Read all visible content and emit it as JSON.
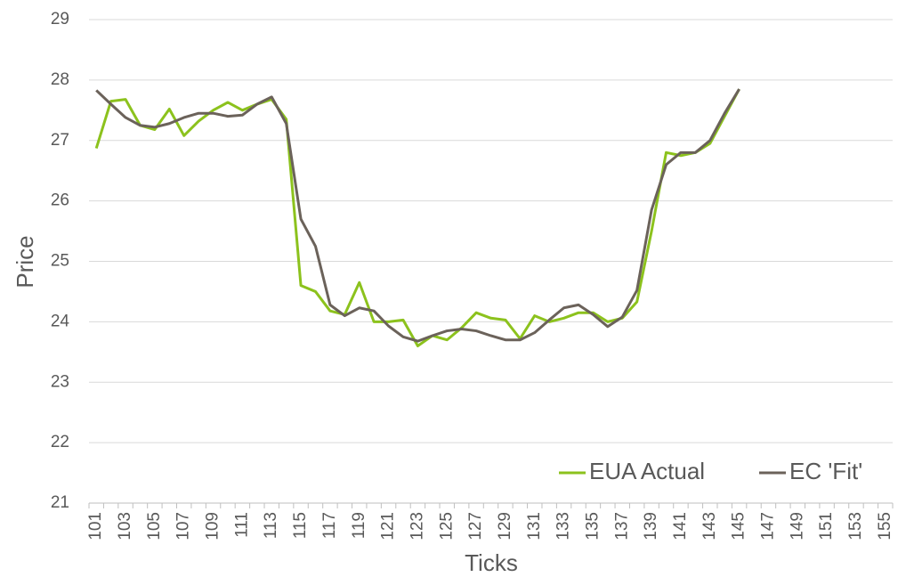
{
  "chart_data": {
    "type": "line",
    "xlabel": "Ticks",
    "ylabel": "Price",
    "categories": [
      101,
      null,
      103,
      null,
      105,
      null,
      107,
      null,
      109,
      null,
      111,
      null,
      113,
      null,
      115,
      null,
      117,
      null,
      119,
      null,
      121,
      null,
      123,
      null,
      125,
      null,
      127,
      null,
      129,
      null,
      131,
      null,
      133,
      null,
      135,
      null,
      137,
      null,
      139,
      null,
      141,
      null,
      143,
      null,
      145,
      null,
      147,
      null,
      149,
      null,
      151,
      null,
      153,
      null,
      155
    ],
    "series": [
      {
        "name": "EUA Actual",
        "color": "#8cc21d",
        "values": [
          26.87,
          27.65,
          27.68,
          27.25,
          27.18,
          27.52,
          27.08,
          27.32,
          27.5,
          27.63,
          27.5,
          27.6,
          27.68,
          27.35,
          24.6,
          24.5,
          24.18,
          24.12,
          24.65,
          24.0,
          24.0,
          24.03,
          23.6,
          23.77,
          23.7,
          23.9,
          24.15,
          24.06,
          24.03,
          23.72,
          24.1,
          24.0,
          24.06,
          24.15,
          24.15,
          24.0,
          24.06,
          24.33,
          25.5,
          26.8,
          26.75,
          26.8,
          26.95,
          27.4,
          27.85,
          null,
          null,
          null,
          null,
          null,
          null,
          null,
          null,
          null,
          null
        ]
      },
      {
        "name": "EC 'Fit'",
        "color": "#6b625a",
        "values": [
          27.83,
          27.6,
          27.38,
          27.25,
          27.22,
          27.28,
          27.38,
          27.45,
          27.45,
          27.4,
          27.42,
          27.6,
          27.72,
          27.28,
          25.7,
          25.25,
          24.28,
          24.1,
          24.23,
          24.18,
          23.93,
          23.75,
          23.68,
          23.77,
          23.85,
          23.88,
          23.85,
          23.77,
          23.7,
          23.7,
          23.82,
          24.03,
          24.23,
          24.28,
          24.12,
          23.92,
          24.08,
          24.52,
          25.85,
          26.6,
          26.8,
          26.8,
          27.0,
          27.45,
          27.85,
          null,
          null,
          null,
          null,
          null,
          null,
          null,
          null,
          null,
          null
        ]
      }
    ],
    "ylim": [
      21,
      29
    ],
    "yticks": [
      21,
      22,
      23,
      24,
      25,
      26,
      27,
      28,
      29
    ],
    "grid": true,
    "legend": "lower right"
  }
}
